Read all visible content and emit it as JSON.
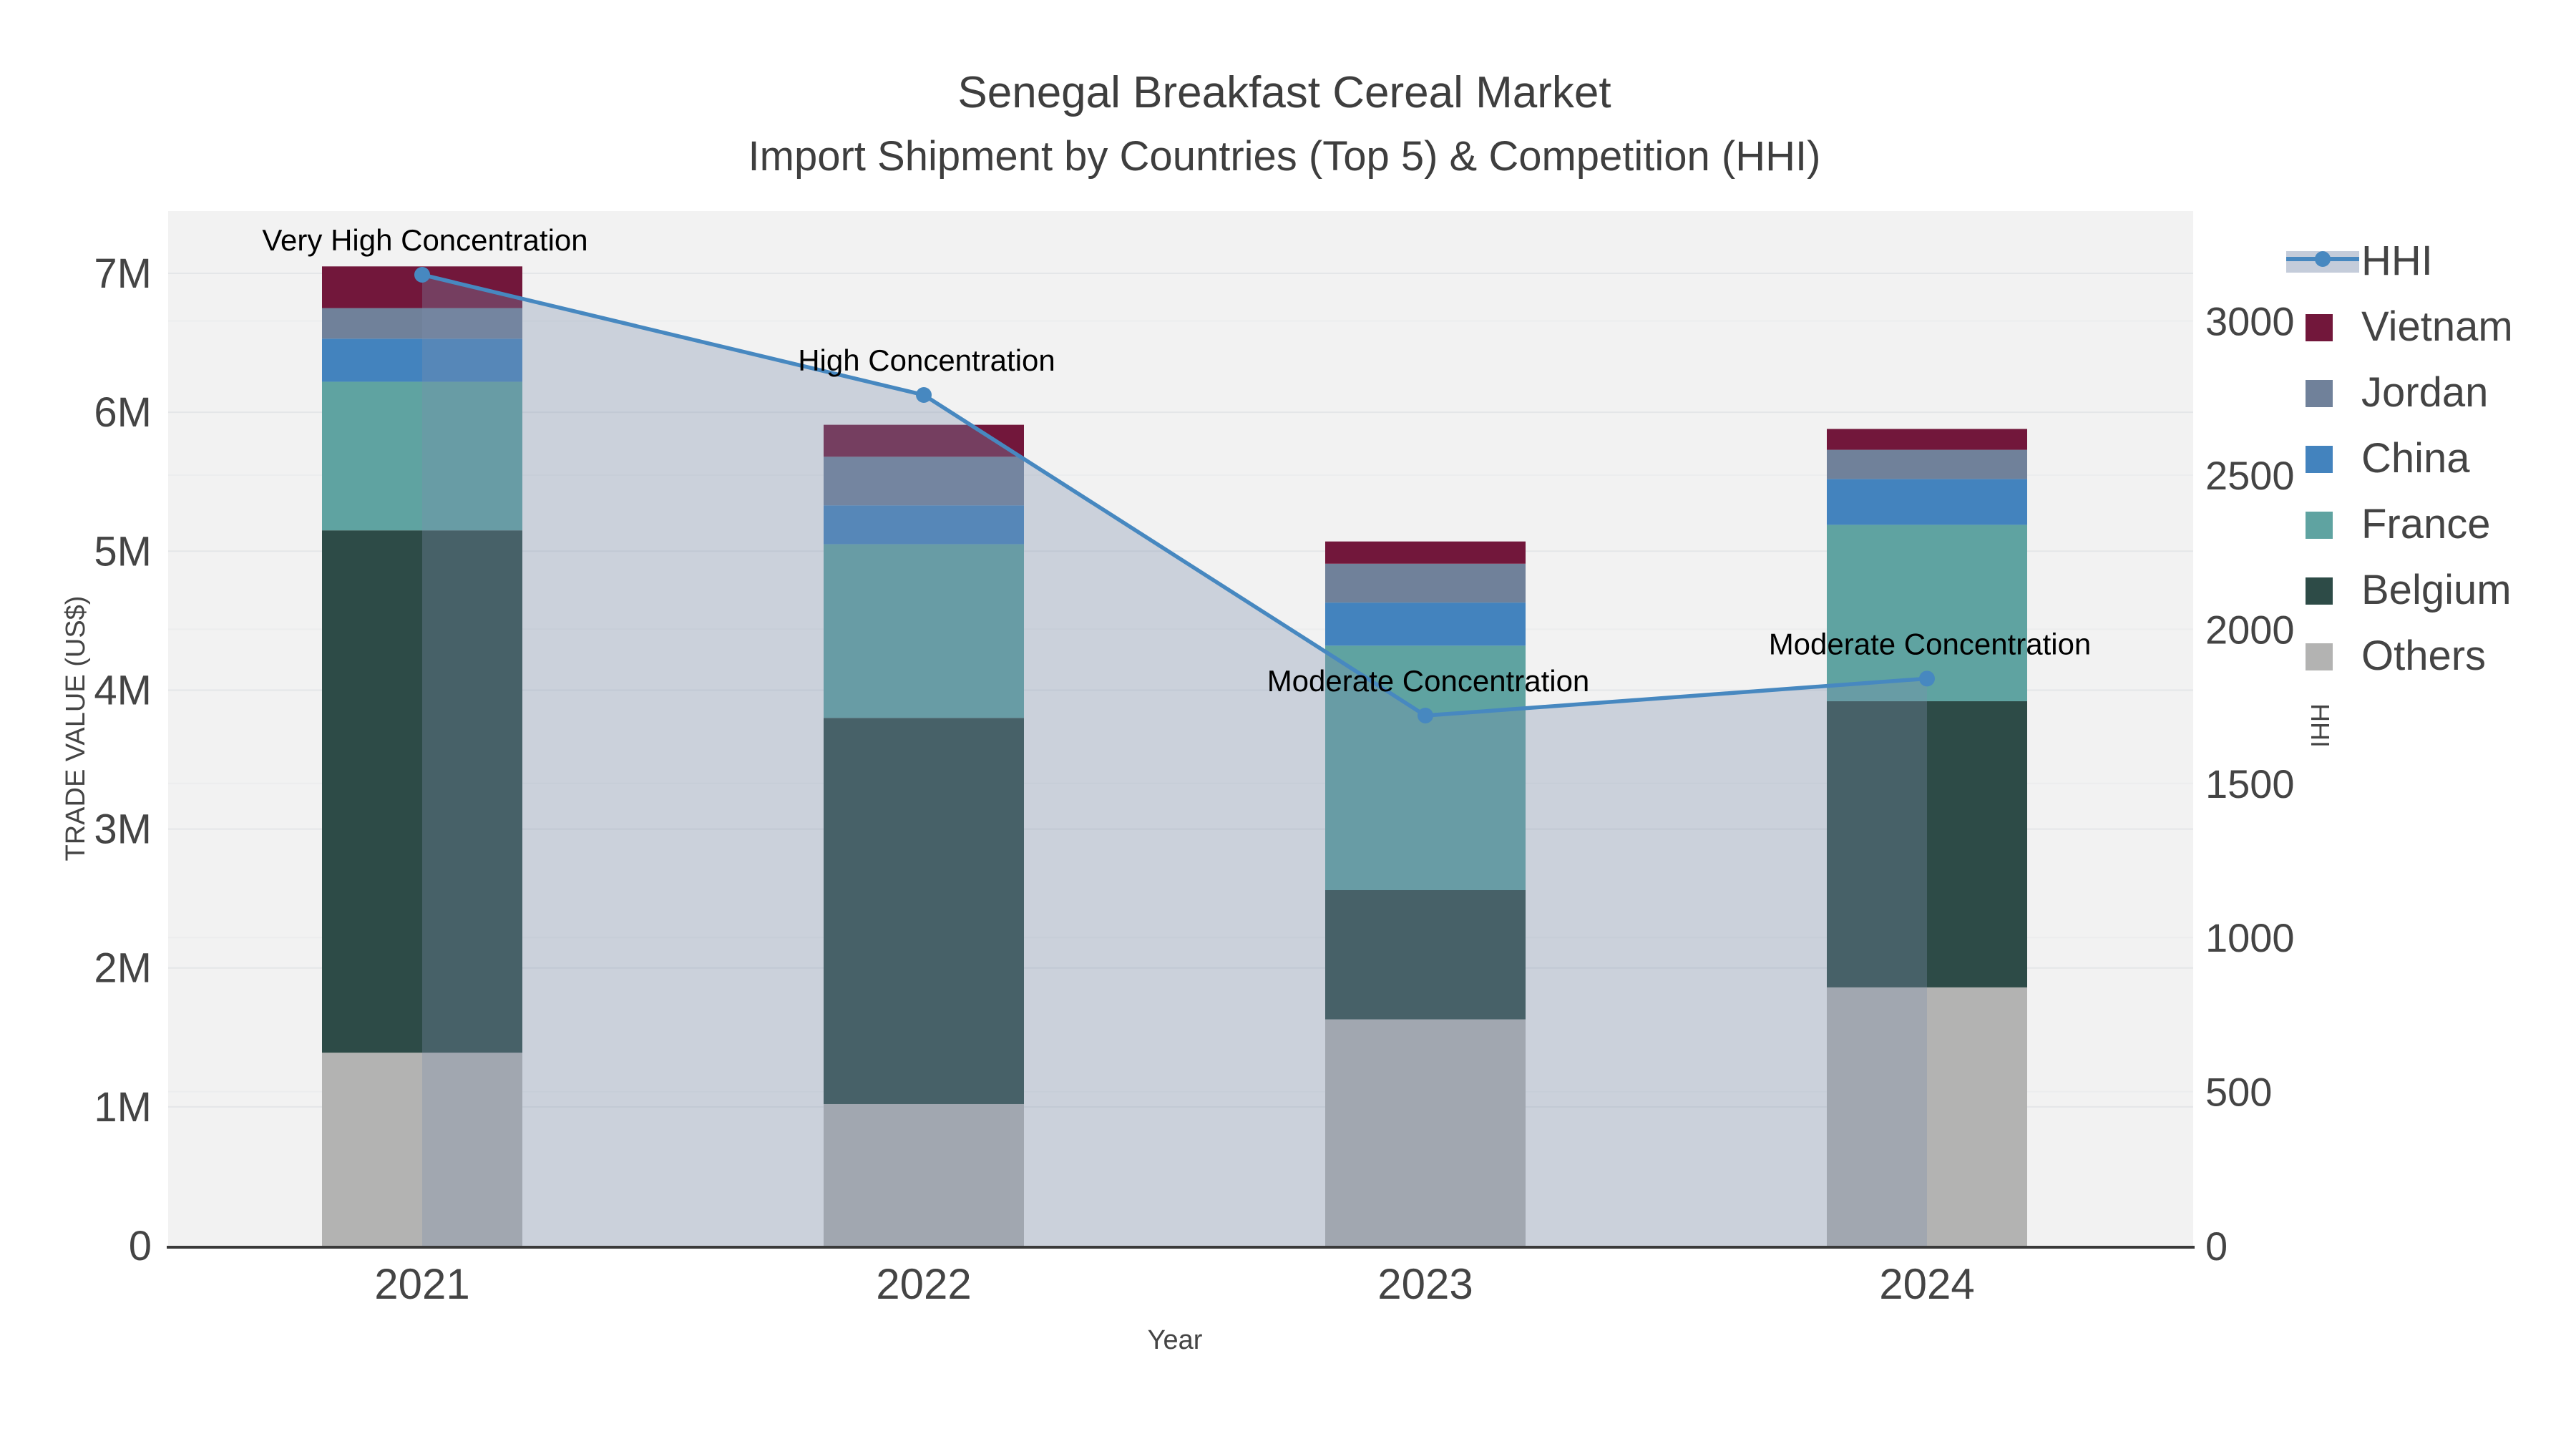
{
  "chart_data": {
    "type": "combo-stacked-bar-line",
    "title": "Senegal Breakfast Cereal Market",
    "subtitle": "Import Shipment by Countries (Top 5) & Competition (HHI)",
    "x": {
      "label": "Year",
      "categories": [
        "2021",
        "2022",
        "2023",
        "2024"
      ]
    },
    "y_left": {
      "label": "TRADE VALUE (US$)",
      "unit": "millions US$",
      "ticks": [
        "0",
        "1M",
        "2M",
        "3M",
        "4M",
        "5M",
        "6M",
        "7M"
      ],
      "range": [
        0,
        7.45
      ]
    },
    "y_right": {
      "label": "HHI",
      "ticks": [
        "0",
        "500",
        "1000",
        "1500",
        "2000",
        "2500",
        "3000"
      ],
      "range": [
        0,
        3357
      ]
    },
    "bar_series": [
      {
        "name": "Others",
        "color": "#B3B3B2",
        "values": [
          1.39,
          1.02,
          1.63,
          1.86
        ]
      },
      {
        "name": "Belgium",
        "color": "#2D4B47",
        "values": [
          3.76,
          2.78,
          0.93,
          2.06
        ]
      },
      {
        "name": "France",
        "color": "#5FA3A1",
        "values": [
          1.07,
          1.25,
          1.76,
          1.27
        ]
      },
      {
        "name": "China",
        "color": "#4383BE",
        "values": [
          0.31,
          0.28,
          0.31,
          0.33
        ]
      },
      {
        "name": "Jordan",
        "color": "#70819A",
        "values": [
          0.22,
          0.35,
          0.28,
          0.21
        ]
      },
      {
        "name": "Vietnam",
        "color": "#72173B",
        "values": [
          0.3,
          0.23,
          0.16,
          0.15
        ]
      }
    ],
    "bar_totals_millions": [
      7.05,
      5.91,
      5.07,
      5.88
    ],
    "line_series": {
      "name": "HHI",
      "color": "#4788C0",
      "fill_color": "#7D8EAC",
      "fill_opacity": 0.33,
      "values": [
        3150,
        2760,
        1720,
        1840
      ]
    },
    "annotations": [
      "Very High Concentration",
      "High Concentration",
      "Moderate Concentration",
      "Moderate Concentration"
    ],
    "legend_order": [
      "HHI",
      "Vietnam",
      "Jordan",
      "China",
      "France",
      "Belgium",
      "Others"
    ],
    "legend_position": "right",
    "grid": true,
    "plot_bg": "#F2F2F2",
    "axis_color": "#3A3A3A",
    "tick_color": "#444444",
    "title_color": "#3E3E3E",
    "annotation_color": "#000000"
  }
}
